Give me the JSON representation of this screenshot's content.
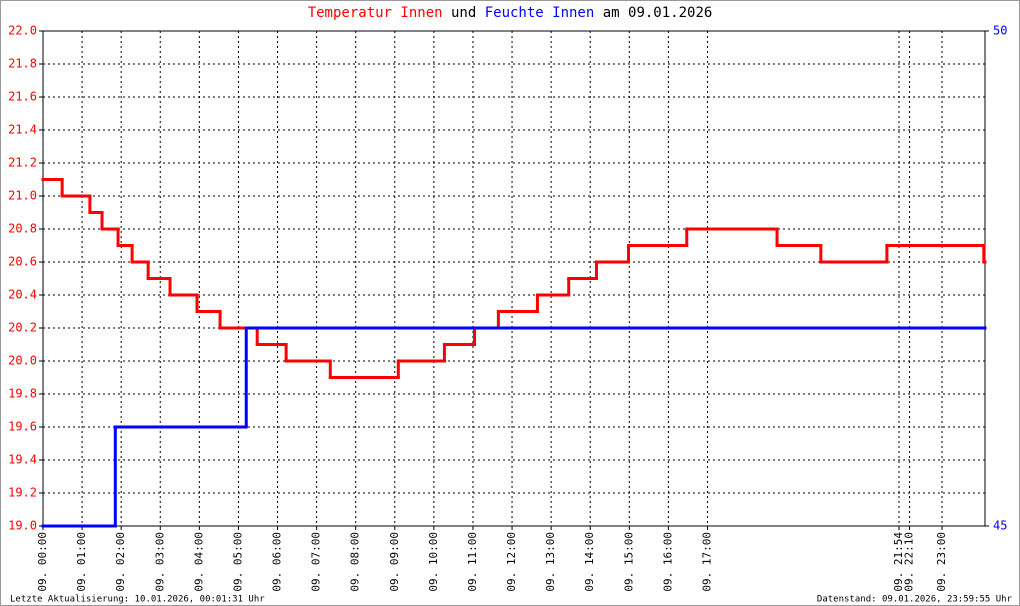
{
  "chart_data": {
    "type": "step",
    "title_joiner": "und",
    "title_suffix": "am 09.01.2026",
    "footer_left": "Letzte Aktualisierung: 10.01.2026, 00:01:31 Uhr",
    "footer_right": "Datenstand: 09.01.2026, 23:59:55 Uhr",
    "xlim": [
      0,
      24.1
    ],
    "xticks": [
      {
        "value": 0,
        "label": "09. 00:00"
      },
      {
        "value": 1,
        "label": "09. 01:00"
      },
      {
        "value": 2,
        "label": "09. 02:00"
      },
      {
        "value": 3,
        "label": "09. 03:00"
      },
      {
        "value": 4,
        "label": "09. 04:00"
      },
      {
        "value": 5,
        "label": "09. 05:00"
      },
      {
        "value": 6,
        "label": "09. 06:00"
      },
      {
        "value": 7,
        "label": "09. 07:00"
      },
      {
        "value": 8,
        "label": "09. 08:00"
      },
      {
        "value": 9,
        "label": "09. 09:00"
      },
      {
        "value": 10,
        "label": "09. 10:00"
      },
      {
        "value": 11,
        "label": "09. 11:00"
      },
      {
        "value": 12,
        "label": "09. 12:00"
      },
      {
        "value": 13,
        "label": "09. 13:00"
      },
      {
        "value": 14,
        "label": "09. 14:00"
      },
      {
        "value": 15,
        "label": "09. 15:00"
      },
      {
        "value": 16,
        "label": "09. 16:00"
      },
      {
        "value": 17,
        "label": "09. 17:00"
      },
      {
        "value": 21.9,
        "label": "09. 21:54"
      },
      {
        "value": 22.17,
        "label": "09. 22:10"
      },
      {
        "value": 23,
        "label": "09. 23:00"
      }
    ],
    "ylim": [
      19,
      22
    ],
    "yticks": [
      {
        "value": 19,
        "label": "19.0"
      },
      19.2,
      19.4,
      19.6,
      19.8,
      {
        "value": 20,
        "label": "20.0"
      },
      20.2,
      20.4,
      20.6,
      20.8,
      {
        "value": 21,
        "label": "21.0"
      },
      21.2,
      21.4,
      21.6,
      21.8,
      {
        "value": 22,
        "label": "22.0"
      }
    ],
    "y2lim": [
      45,
      50
    ],
    "y2ticks": [
      45,
      50
    ],
    "grid": true,
    "series": [
      {
        "name": "Temperatur Innen",
        "color": "#ff0000",
        "x": [
          0,
          0.49,
          1.2,
          1.51,
          1.92,
          2.28,
          2.69,
          3.25,
          3.94,
          4.53,
          5.48,
          6.22,
          7.35,
          9.09,
          10.27,
          11.04,
          11.65,
          12.65,
          13.45,
          14.16,
          14.98,
          16.47,
          18.78,
          19.9,
          21.59,
          24.07
        ],
        "values": [
          21.1,
          21.0,
          20.9,
          20.8,
          20.7,
          20.6,
          20.5,
          20.4,
          20.3,
          20.2,
          20.1,
          20.0,
          19.9,
          20.0,
          20.1,
          20.2,
          20.3,
          20.4,
          20.5,
          20.6,
          20.7,
          20.8,
          20.7,
          20.6,
          20.7,
          20.6
        ]
      },
      {
        "name": "Feuchte Innen",
        "color": "#0000ff",
        "axis": "y2",
        "x": [
          0,
          1.85,
          5.2
        ],
        "values": [
          45,
          46,
          47
        ]
      }
    ]
  }
}
